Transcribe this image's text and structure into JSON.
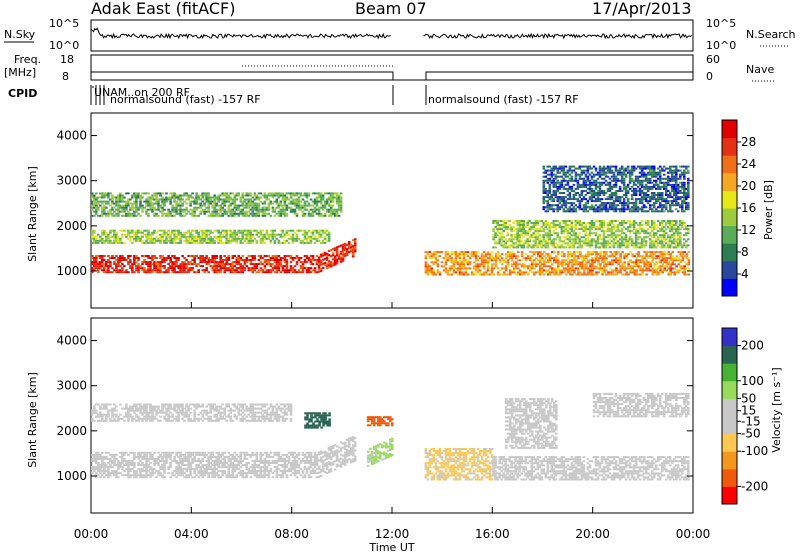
{
  "header": {
    "station": "Adak East (fitACF)",
    "beam": "Beam 07",
    "date": "17/Apr/2013"
  },
  "labels": {
    "nsky": "N.Sky",
    "nsearch": "N.Search",
    "freq_line1": "Freq.",
    "freq_line2": "[MHz]",
    "nave": "Nave",
    "cpid": "CPID",
    "slant_range": "Slant Range [km]",
    "time_axis": "Time UT",
    "power_title": "Power [dB]",
    "velocity_title": "Velocity [m s⁻¹]"
  },
  "cpid": {
    "label_left": "normalsound (fast) -157 RF",
    "label_right": "normalsound (fast) -157 RF",
    "overlap_text": "UNAM..on 200 RF",
    "data_gap_utc": [
      12.0,
      13.25
    ]
  },
  "noise_axes": {
    "left_ticks": [
      "10^5",
      "10^0"
    ],
    "right_ticks": [
      "10^5",
      "10^0"
    ]
  },
  "freq_axes": {
    "left_ticks": [
      "18",
      "8"
    ],
    "right_ticks": [
      "60",
      "0"
    ]
  },
  "chart_data": [
    {
      "type": "heatmap",
      "title": "",
      "quantity": "Power",
      "units": "dB",
      "xlabel": "Time UT",
      "ylabel": "Slant Range [km]",
      "x_range_hours": [
        0,
        24
      ],
      "xticks": [
        "00:00",
        "04:00",
        "08:00",
        "12:00",
        "16:00",
        "20:00",
        "00:00"
      ],
      "ylim": [
        180,
        4500
      ],
      "yticks": [
        1000,
        2000,
        3000,
        4000
      ],
      "color_scale": {
        "min": 0,
        "max": 32,
        "ticks": [
          4,
          8,
          12,
          16,
          20,
          24,
          28
        ],
        "colors": [
          "#0000ff",
          "#2848a0",
          "#2e7d52",
          "#5aab5a",
          "#9ccc3c",
          "#e8e818",
          "#f5a623",
          "#f07018",
          "#e53015",
          "#e00000"
        ]
      },
      "echo_bands": [
        {
          "time_hours": [
            0.0,
            10.5
          ],
          "range_km": [
            950,
            1350
          ],
          "power_db": 28,
          "note": "strong near-range band"
        },
        {
          "time_hours": [
            0.0,
            9.5
          ],
          "range_km": [
            1600,
            1900
          ],
          "power_db": 14
        },
        {
          "time_hours": [
            0.0,
            10.0
          ],
          "range_km": [
            2200,
            2700
          ],
          "power_db": 12
        },
        {
          "time_hours": [
            13.3,
            23.8
          ],
          "range_km": [
            900,
            1400
          ],
          "power_db": 22
        },
        {
          "time_hours": [
            16.0,
            23.8
          ],
          "range_km": [
            1500,
            2100
          ],
          "power_db": 14
        },
        {
          "time_hours": [
            18.0,
            23.8
          ],
          "range_km": [
            2300,
            3300
          ],
          "power_db": 6
        }
      ]
    },
    {
      "type": "heatmap",
      "title": "",
      "quantity": "Velocity",
      "units": "m s^-1",
      "xlabel": "Time UT",
      "ylabel": "Slant Range [km]",
      "x_range_hours": [
        0,
        24
      ],
      "xticks": [
        "00:00",
        "04:00",
        "08:00",
        "12:00",
        "16:00",
        "20:00",
        "00:00"
      ],
      "ylim": [
        180,
        4500
      ],
      "yticks": [
        1000,
        2000,
        3000,
        4000
      ],
      "color_scale": {
        "min": -250,
        "max": 250,
        "ticks": [
          -200,
          -100,
          -50,
          -15,
          15,
          50,
          100,
          200
        ],
        "colors": [
          "#ff0000",
          "#f05a0a",
          "#f5961e",
          "#ffc850",
          "#c8c8c8",
          "#c8c8c8",
          "#96dc5a",
          "#46b432",
          "#286450",
          "#3232c8"
        ]
      },
      "echo_bands": [
        {
          "time_hours": [
            0.0,
            10.5
          ],
          "range_km": [
            950,
            1500
          ],
          "velocity": 0,
          "note": "ground scatter"
        },
        {
          "time_hours": [
            0.0,
            8.0
          ],
          "range_km": [
            2200,
            2600
          ],
          "velocity": -30
        },
        {
          "time_hours": [
            8.5,
            9.5
          ],
          "range_km": [
            2050,
            2400
          ],
          "velocity": 180
        },
        {
          "time_hours": [
            11.0,
            12.0
          ],
          "range_km": [
            2100,
            2300
          ],
          "velocity": -180
        },
        {
          "time_hours": [
            11.0,
            12.0
          ],
          "range_km": [
            700,
            1100
          ],
          "velocity": 60
        },
        {
          "time_hours": [
            13.3,
            16.0
          ],
          "range_km": [
            900,
            1600
          ],
          "velocity": -60
        },
        {
          "time_hours": [
            16.5,
            18.5
          ],
          "range_km": [
            1600,
            2700
          ],
          "velocity": 30
        },
        {
          "time_hours": [
            16.0,
            23.8
          ],
          "range_km": [
            900,
            1400
          ],
          "velocity": 0,
          "note": "ground scatter"
        },
        {
          "time_hours": [
            20.0,
            23.8
          ],
          "range_km": [
            2300,
            2800
          ],
          "velocity": 0
        }
      ]
    }
  ]
}
